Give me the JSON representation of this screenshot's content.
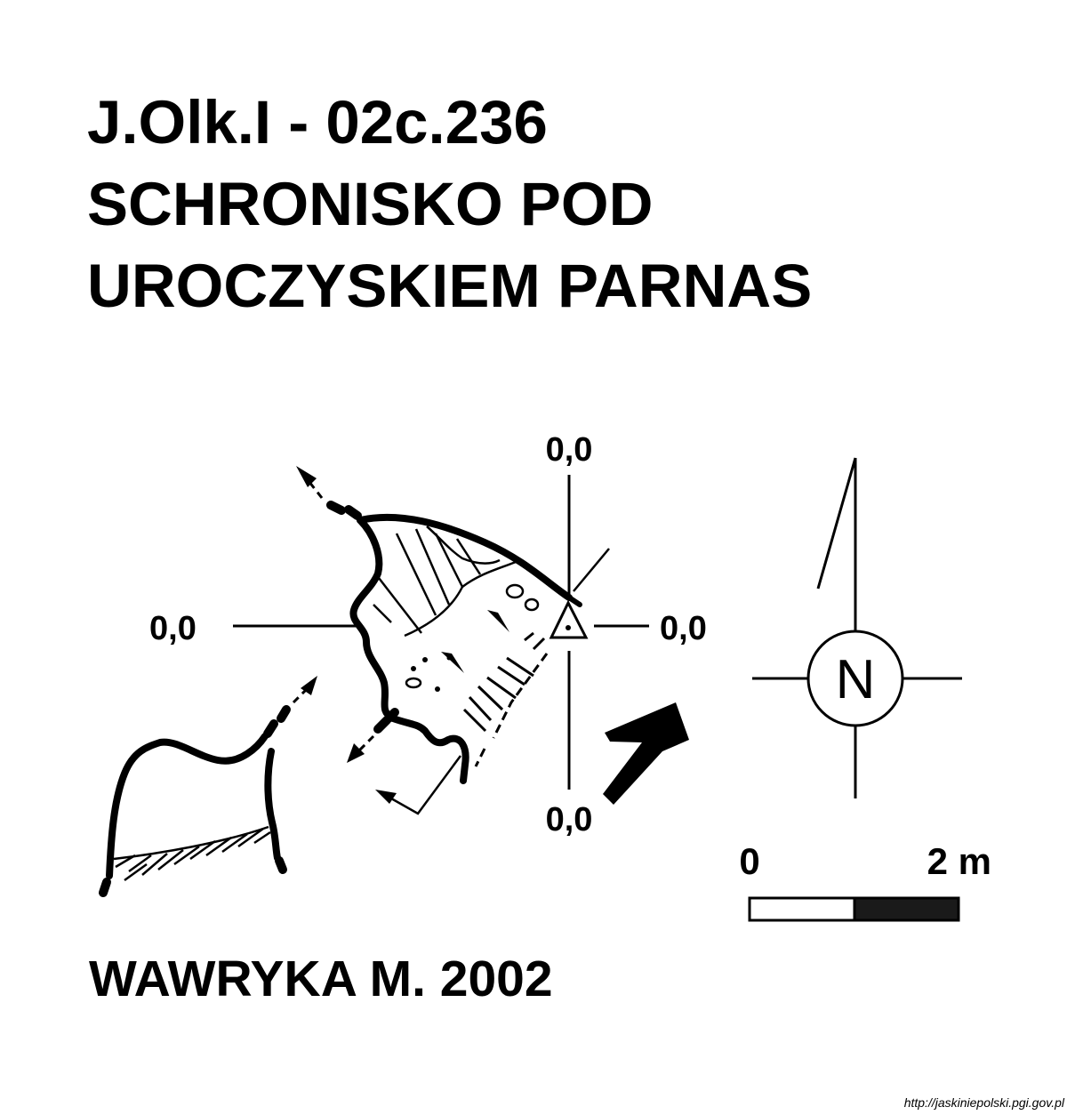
{
  "title": {
    "code": "J.Olk.I - 02c.236",
    "line2": "SCHRONISKO POD",
    "line3": "UROCZYSKIEM PARNAS"
  },
  "reference_labels": {
    "top": "0,0",
    "left": "0,0",
    "right": "0,0",
    "bottom": "0,0"
  },
  "compass": {
    "letter": "N",
    "icon": "north-arrow-icon"
  },
  "scale_bar": {
    "start_label": "0",
    "end_label": "2 m"
  },
  "author": "WAWRYKA M. 2002",
  "source": "http://jaskiniepolski.pgi.gov.pl"
}
